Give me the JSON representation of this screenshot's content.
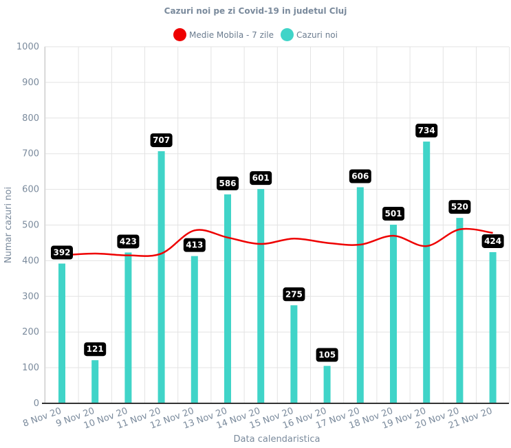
{
  "chart_data": {
    "type": "bar",
    "title": "Cazuri noi pe zi Covid-19 in judetul Cluj",
    "xlabel": "Data calendaristica",
    "ylabel": "Numar cazuri noi",
    "ylim": [
      0,
      1000
    ],
    "yticks": [
      0,
      100,
      200,
      300,
      400,
      500,
      600,
      700,
      800,
      900,
      1000
    ],
    "grid": true,
    "legend_position": "top-center",
    "categories": [
      "8 Nov 20",
      "9 Nov 20",
      "10 Nov 20",
      "11 Nov 20",
      "12 Nov 20",
      "13 Nov 20",
      "14 Nov 20",
      "15 Nov 20",
      "16 Nov 20",
      "17 Nov 20",
      "18 Nov 20",
      "19 Nov 20",
      "20 Nov 20",
      "21 Nov 20"
    ],
    "series": [
      {
        "name": "Medie Mobila - 7 zile",
        "type": "line",
        "color": "#ee0000",
        "values": [
          415,
          420,
          415,
          420,
          485,
          465,
          447,
          462,
          450,
          445,
          470,
          441,
          488,
          478
        ]
      },
      {
        "name": "Cazuri noi",
        "type": "bar",
        "color": "#40d4c8",
        "values": [
          392,
          121,
          423,
          707,
          413,
          586,
          601,
          275,
          105,
          606,
          501,
          734,
          520,
          424
        ]
      }
    ]
  }
}
